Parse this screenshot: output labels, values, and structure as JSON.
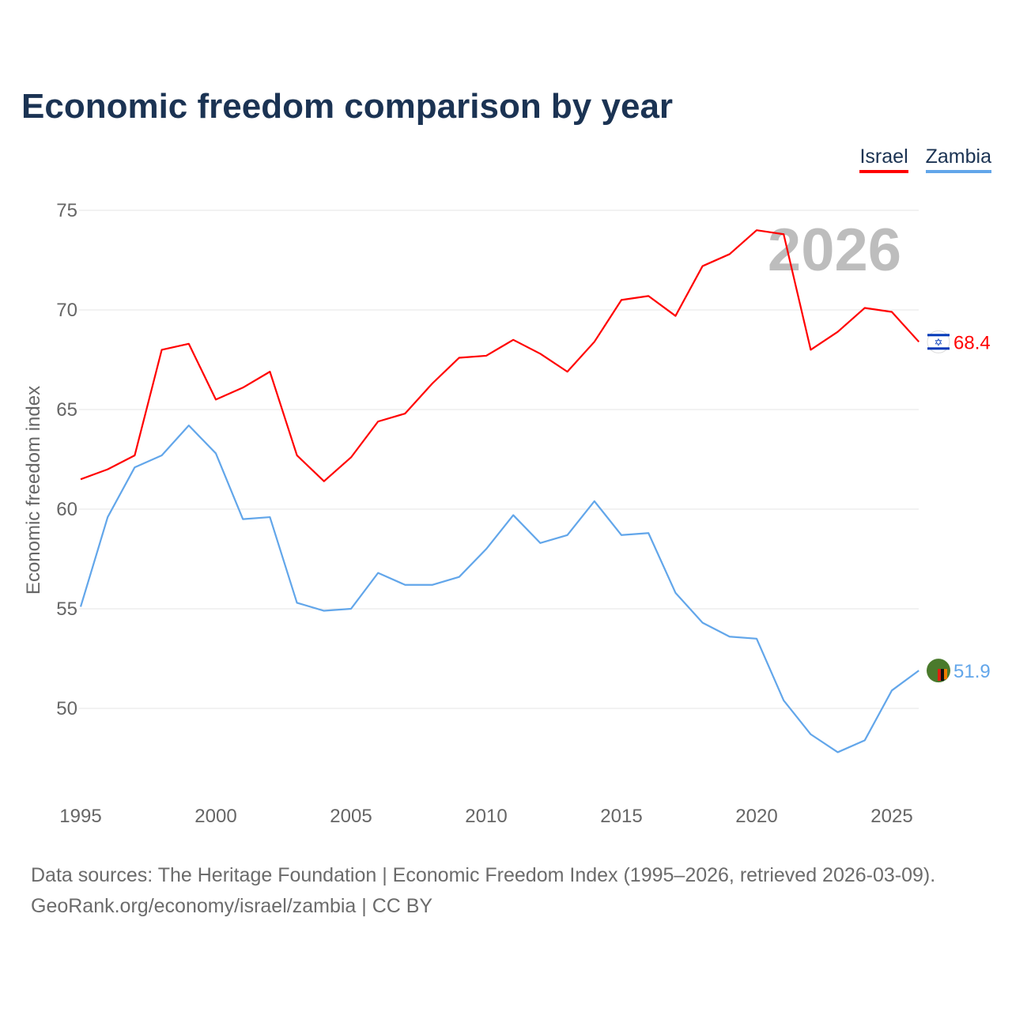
{
  "title": "Economic freedom comparison by year",
  "footer": {
    "line1": "Data sources: The Heritage Foundation | Economic Freedom Index (1995–2026, retrieved 2026-03-09).",
    "line2": "GeoRank.org/economy/israel/zambia | CC BY"
  },
  "chart_data": {
    "type": "line",
    "title": "Economic freedom comparison by year",
    "xlabel": "",
    "ylabel": "Economic freedom index",
    "watermark_year": "2026",
    "xlim": [
      1995,
      2026
    ],
    "ylim": [
      45,
      76
    ],
    "xticks": [
      1995,
      2000,
      2005,
      2010,
      2015,
      2020,
      2025
    ],
    "yticks": [
      50,
      55,
      60,
      65,
      70,
      75
    ],
    "grid": true,
    "legend_position": "top-right",
    "x": [
      1995,
      1996,
      1997,
      1998,
      1999,
      2000,
      2001,
      2002,
      2003,
      2004,
      2005,
      2006,
      2007,
      2008,
      2009,
      2010,
      2011,
      2012,
      2013,
      2014,
      2015,
      2016,
      2017,
      2018,
      2019,
      2020,
      2021,
      2022,
      2023,
      2024,
      2025,
      2026
    ],
    "series": [
      {
        "name": "Israel",
        "color": "#ff0000",
        "end_label": "68.4",
        "values": [
          61.5,
          62.0,
          62.7,
          68.0,
          68.3,
          65.5,
          66.1,
          66.9,
          62.7,
          61.4,
          62.6,
          64.4,
          64.8,
          66.3,
          67.6,
          67.7,
          68.5,
          67.8,
          66.9,
          68.4,
          70.5,
          70.7,
          69.7,
          72.2,
          72.8,
          74.0,
          73.8,
          68.0,
          68.9,
          70.1,
          69.9,
          68.4
        ]
      },
      {
        "name": "Zambia",
        "color": "#62a6ea",
        "end_label": "51.9",
        "values": [
          55.1,
          59.6,
          62.1,
          62.7,
          64.2,
          62.8,
          59.5,
          59.6,
          55.3,
          54.9,
          55.0,
          56.8,
          56.2,
          56.2,
          56.6,
          58.0,
          59.7,
          58.3,
          58.7,
          60.4,
          58.7,
          58.8,
          55.8,
          54.3,
          53.6,
          53.5,
          50.4,
          48.7,
          47.8,
          48.4,
          50.9,
          51.9
        ]
      }
    ]
  }
}
